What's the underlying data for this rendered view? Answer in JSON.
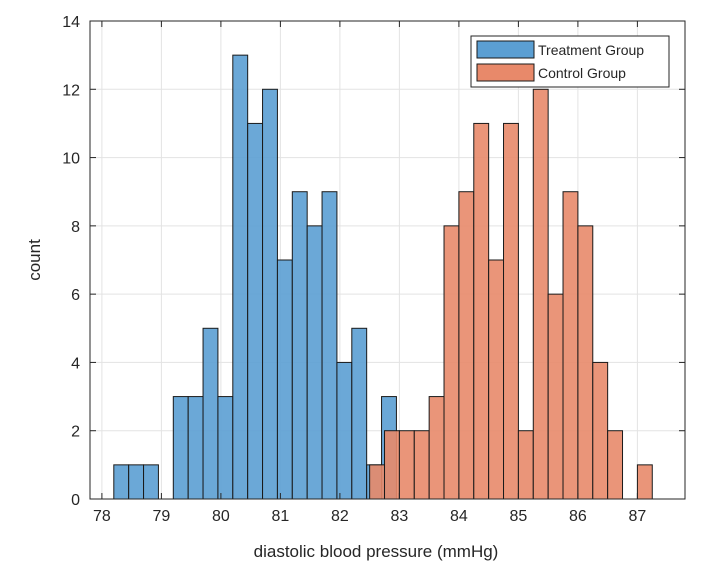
{
  "chart_data": {
    "type": "histogram",
    "xlabel": "diastolic blood pressure (mmHg)",
    "ylabel": "count",
    "xlim": [
      77.8,
      87.8
    ],
    "ylim": [
      0,
      14
    ],
    "grid": true,
    "legend_position": "top-right",
    "xticks": [
      78,
      79,
      80,
      81,
      82,
      83,
      84,
      85,
      86,
      87
    ],
    "yticks": [
      0,
      2,
      4,
      6,
      8,
      10,
      12,
      14
    ],
    "series": [
      {
        "name": "Treatment Group",
        "color": "#5b9fd3",
        "edge_color": "#1a1a1a",
        "bins": [
          {
            "start": 78.2,
            "end": 78.45,
            "count": 1
          },
          {
            "start": 78.45,
            "end": 78.7,
            "count": 1
          },
          {
            "start": 78.7,
            "end": 78.95,
            "count": 1
          },
          {
            "start": 78.95,
            "end": 79.2,
            "count": 0
          },
          {
            "start": 79.2,
            "end": 79.45,
            "count": 3
          },
          {
            "start": 79.45,
            "end": 79.7,
            "count": 3
          },
          {
            "start": 79.7,
            "end": 79.95,
            "count": 5
          },
          {
            "start": 79.95,
            "end": 80.2,
            "count": 3
          },
          {
            "start": 80.2,
            "end": 80.45,
            "count": 13
          },
          {
            "start": 80.45,
            "end": 80.7,
            "count": 11
          },
          {
            "start": 80.7,
            "end": 80.95,
            "count": 12
          },
          {
            "start": 80.95,
            "end": 81.2,
            "count": 7
          },
          {
            "start": 81.2,
            "end": 81.45,
            "count": 9
          },
          {
            "start": 81.45,
            "end": 81.7,
            "count": 8
          },
          {
            "start": 81.7,
            "end": 81.95,
            "count": 9
          },
          {
            "start": 81.95,
            "end": 82.2,
            "count": 4
          },
          {
            "start": 82.2,
            "end": 82.45,
            "count": 5
          },
          {
            "start": 82.45,
            "end": 82.7,
            "count": 1
          },
          {
            "start": 82.7,
            "end": 82.95,
            "count": 3
          }
        ]
      },
      {
        "name": "Control Group",
        "color": "#e8896a",
        "edge_color": "#1a1a1a",
        "bins": [
          {
            "start": 82.5,
            "end": 82.75,
            "count": 1
          },
          {
            "start": 82.75,
            "end": 83.0,
            "count": 2
          },
          {
            "start": 83.0,
            "end": 83.25,
            "count": 2
          },
          {
            "start": 83.25,
            "end": 83.5,
            "count": 2
          },
          {
            "start": 83.5,
            "end": 83.75,
            "count": 3
          },
          {
            "start": 83.75,
            "end": 84.0,
            "count": 8
          },
          {
            "start": 84.0,
            "end": 84.25,
            "count": 9
          },
          {
            "start": 84.25,
            "end": 84.5,
            "count": 11
          },
          {
            "start": 84.5,
            "end": 84.75,
            "count": 7
          },
          {
            "start": 84.75,
            "end": 85.0,
            "count": 11
          },
          {
            "start": 85.0,
            "end": 85.25,
            "count": 2
          },
          {
            "start": 85.25,
            "end": 85.5,
            "count": 12
          },
          {
            "start": 85.5,
            "end": 85.75,
            "count": 6
          },
          {
            "start": 85.75,
            "end": 86.0,
            "count": 9
          },
          {
            "start": 86.0,
            "end": 86.25,
            "count": 8
          },
          {
            "start": 86.25,
            "end": 86.5,
            "count": 4
          },
          {
            "start": 86.5,
            "end": 86.75,
            "count": 2
          },
          {
            "start": 86.75,
            "end": 87.0,
            "count": 0
          },
          {
            "start": 87.0,
            "end": 87.25,
            "count": 1
          }
        ]
      }
    ]
  }
}
